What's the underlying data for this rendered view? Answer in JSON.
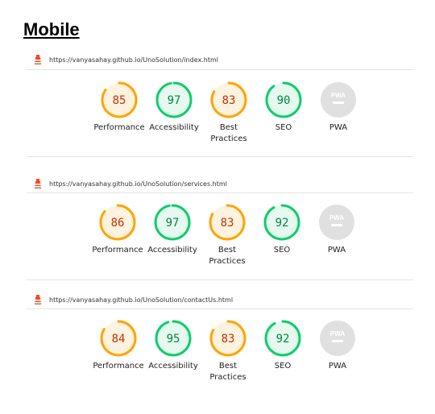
{
  "heading": "Mobile",
  "colors": {
    "average": "#ffa400",
    "average_bg": "#fff3e0",
    "average_text": "#c33300",
    "pass": "#0cce6b",
    "pass_bg": "#e6f9ee",
    "pass_text": "#018642",
    "pwa_bg": "#e0e0e0"
  },
  "reports": [
    {
      "url": "https://vanyasahay.github.io/UnoSolution/index.html",
      "scores": [
        {
          "value": "85",
          "label": "Performance",
          "type": "average",
          "fraction": 0.85
        },
        {
          "value": "97",
          "label": "Accessibility",
          "type": "pass",
          "fraction": 0.97
        },
        {
          "value": "83",
          "label": "Best Practices",
          "type": "average",
          "fraction": 0.83
        },
        {
          "value": "90",
          "label": "SEO",
          "type": "pass",
          "fraction": 0.9
        },
        {
          "value": "PWA",
          "label": "PWA",
          "type": "pwa",
          "fraction": 0
        }
      ]
    },
    {
      "url": "https://vanyasahay.github.io/UnoSolution/services.html",
      "scores": [
        {
          "value": "86",
          "label": "Performance",
          "type": "average",
          "fraction": 0.86
        },
        {
          "value": "97",
          "label": "Accessibility",
          "type": "pass",
          "fraction": 0.97
        },
        {
          "value": "83",
          "label": "Best Practices",
          "type": "average",
          "fraction": 0.83
        },
        {
          "value": "92",
          "label": "SEO",
          "type": "pass",
          "fraction": 0.92
        },
        {
          "value": "PWA",
          "label": "PWA",
          "type": "pwa",
          "fraction": 0
        }
      ]
    },
    {
      "url": "https://vanyasahay.github.io/UnoSolution/contactUs.html",
      "scores": [
        {
          "value": "84",
          "label": "Performance",
          "type": "average",
          "fraction": 0.84
        },
        {
          "value": "95",
          "label": "Accessibility",
          "type": "pass",
          "fraction": 0.95
        },
        {
          "value": "83",
          "label": "Best Practices",
          "type": "average",
          "fraction": 0.83
        },
        {
          "value": "92",
          "label": "SEO",
          "type": "pass",
          "fraction": 0.92
        },
        {
          "value": "PWA",
          "label": "PWA",
          "type": "pwa",
          "fraction": 0
        }
      ]
    }
  ]
}
